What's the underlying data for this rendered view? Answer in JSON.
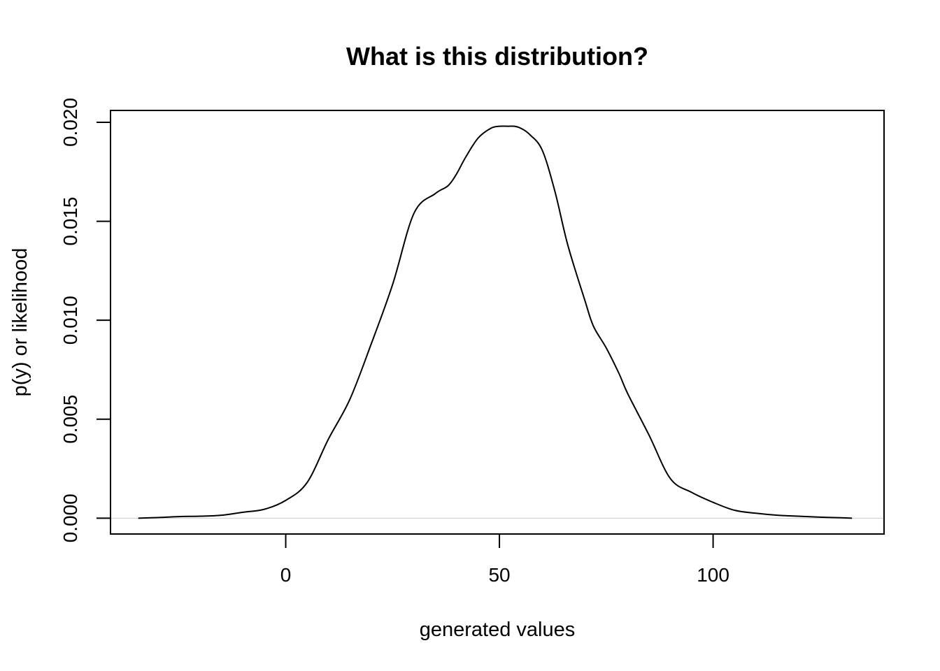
{
  "chart_data": {
    "type": "line",
    "title": "What is this distribution?",
    "xlabel": "generated values",
    "ylabel": "p(y) or likelihood",
    "xlim": [
      -41,
      140
    ],
    "ylim": [
      -0.0008,
      0.0206
    ],
    "x_ticks": [
      0,
      50,
      100
    ],
    "x_tick_labels": [
      "0",
      "50",
      "100"
    ],
    "y_ticks": [
      0.0,
      0.005,
      0.01,
      0.015,
      0.02
    ],
    "y_tick_labels": [
      "0.000",
      "0.005",
      "0.010",
      "0.015",
      "0.020"
    ],
    "grid": false,
    "horizontal_reference_line_y": 0,
    "line_color": "#000000",
    "reference_line_color": "#cccccc",
    "series": [
      {
        "x": [
          -34.5,
          -30,
          -25,
          -20,
          -15,
          -10,
          -5,
          0,
          5,
          10,
          15,
          20,
          25,
          30,
          35,
          38,
          40,
          42,
          45,
          48,
          50,
          52,
          53.5,
          55,
          57,
          60,
          63,
          66,
          70,
          72,
          75,
          78,
          80,
          85,
          90,
          95,
          100,
          105,
          110,
          115,
          120,
          125,
          130,
          132.5
        ],
        "y": [
          0.0,
          3e-05,
          8e-05,
          0.0001,
          0.00015,
          0.0003,
          0.00045,
          0.0009,
          0.0018,
          0.004,
          0.006,
          0.0088,
          0.0118,
          0.0154,
          0.0164,
          0.0168,
          0.0174,
          0.0182,
          0.0192,
          0.0197,
          0.0198,
          0.0198,
          0.0198,
          0.0197,
          0.0194,
          0.0186,
          0.0165,
          0.0138,
          0.011,
          0.0097,
          0.0086,
          0.0073,
          0.0063,
          0.0042,
          0.002,
          0.0013,
          0.0008,
          0.0004,
          0.00025,
          0.00015,
          0.0001,
          5e-05,
          2e-05,
          0.0
        ]
      }
    ]
  }
}
